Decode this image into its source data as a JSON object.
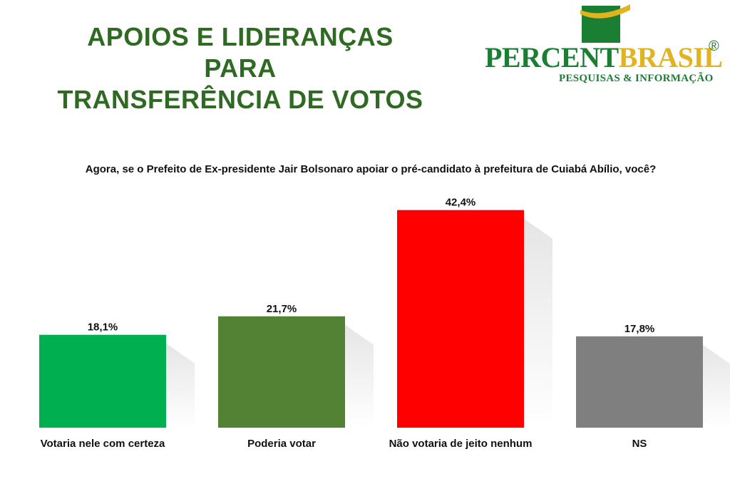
{
  "header": {
    "title_line_1": "APOIOS E LIDERANÇAS PARA",
    "title_line_2": "TRANSFERÊNCIA DE VOTOS"
  },
  "logo": {
    "word_part_1": "PERCENT",
    "word_part_2": "BRASIL",
    "registered": "®",
    "tagline": "PESQUISAS & INFORMAÇÃO",
    "colors": {
      "green": "#1b7f33",
      "gold": "#e2b321"
    }
  },
  "chart_data": {
    "type": "bar",
    "title": "Agora, se o Prefeito de Ex-presidente Jair Bolsonaro apoiar o pré-candidato à prefeitura de Cuiabá Abílio, você?",
    "categories": [
      "Votaria nele com certeza",
      "Poderia votar",
      "Não votaria de jeito nenhum",
      "NS"
    ],
    "values": [
      18.1,
      21.7,
      42.4,
      17.8
    ],
    "value_labels": [
      "18,1%",
      "21,7%",
      "42,4%",
      "17,8%"
    ],
    "colors": [
      "#00b050",
      "#548235",
      "#ff0000",
      "#7f7f7f"
    ],
    "ylim": [
      0,
      50
    ],
    "grid": false,
    "legend": "none"
  }
}
